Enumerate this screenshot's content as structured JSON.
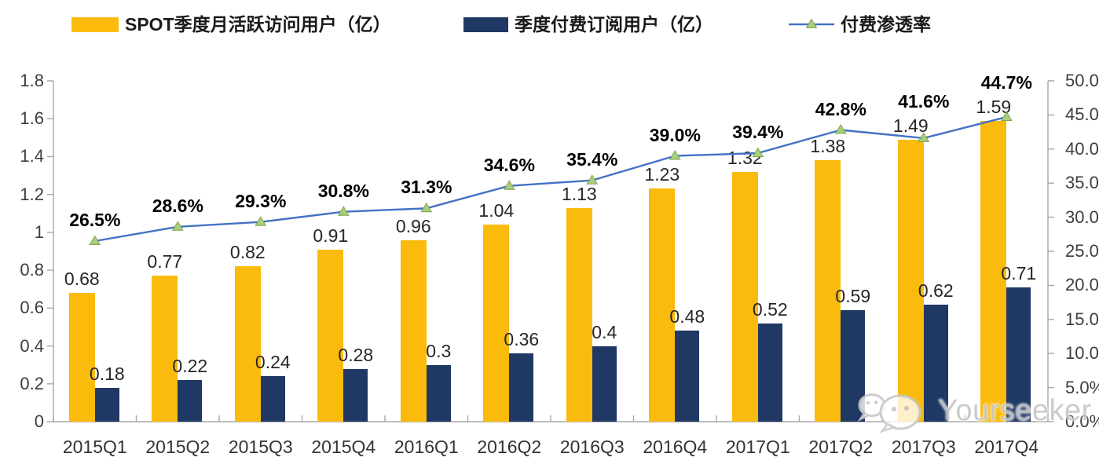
{
  "chart_data": {
    "type": "bar+line combo",
    "title": "",
    "categories": [
      "2015Q1",
      "2015Q2",
      "2015Q3",
      "2015Q4",
      "2016Q1",
      "2016Q2",
      "2016Q3",
      "2016Q4",
      "2017Q1",
      "2017Q2",
      "2017Q3",
      "2017Q4"
    ],
    "series": [
      {
        "name": "SPOT季度月活跃访问用户（亿）",
        "type": "bar",
        "axis": "left",
        "color": "#FBBB0C",
        "values": [
          0.68,
          0.77,
          0.82,
          0.91,
          0.96,
          1.04,
          1.13,
          1.23,
          1.32,
          1.38,
          1.49,
          1.59
        ],
        "labels": [
          "0.68",
          "0.77",
          "0.82",
          "0.91",
          "0.96",
          "1.04",
          "1.13",
          "1.23",
          "1.32",
          "1.38",
          "1.49",
          "1.59"
        ]
      },
      {
        "name": "季度付费订阅用户（亿）",
        "type": "bar",
        "axis": "left",
        "color": "#1F3864",
        "values": [
          0.18,
          0.22,
          0.24,
          0.28,
          0.3,
          0.36,
          0.4,
          0.48,
          0.52,
          0.59,
          0.62,
          0.71
        ],
        "labels": [
          "0.18",
          "0.22",
          "0.24",
          "0.28",
          "0.3",
          "0.36",
          "0.4",
          "0.48",
          "0.52",
          "0.59",
          "0.62",
          "0.71"
        ]
      },
      {
        "name": "付费渗透率",
        "type": "line",
        "axis": "right",
        "color": "#4472C4",
        "marker": "triangle",
        "marker_color": "#A9CE7C",
        "marker_edge_color": "#7FA650",
        "values": [
          26.5,
          28.6,
          29.3,
          30.8,
          31.3,
          34.6,
          35.4,
          39.0,
          39.4,
          42.8,
          41.6,
          44.7
        ],
        "labels": [
          "26.5%",
          "28.6%",
          "29.3%",
          "30.8%",
          "31.3%",
          "34.6%",
          "35.4%",
          "39.0%",
          "39.4%",
          "42.8%",
          "41.6%",
          "44.7%"
        ]
      }
    ],
    "left_axis": {
      "min": 0,
      "max": 1.8,
      "ticks": [
        "0",
        "0.2",
        "0.4",
        "0.6",
        "0.8",
        "1",
        "1.2",
        "1.4",
        "1.6",
        "1.8"
      ]
    },
    "right_axis": {
      "min": 0,
      "max": 50,
      "ticks": [
        "0.0%",
        "5.0%",
        "10.0%",
        "15.0%",
        "20.0%",
        "25.0%",
        "30.0%",
        "35.0%",
        "40.0%",
        "45.0%",
        "50.0%"
      ]
    },
    "grid": false,
    "legend_position": "top"
  },
  "watermark": {
    "text": "Yourseeker",
    "icon": "wechat-icon"
  }
}
